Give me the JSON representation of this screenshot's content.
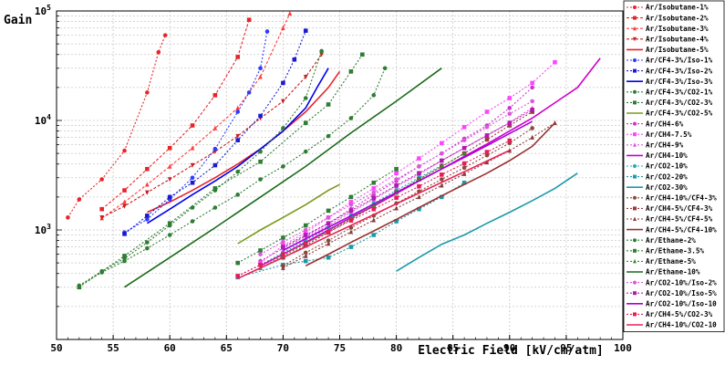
{
  "chart_data": {
    "type": "line",
    "title": "",
    "xlabel": "Electric Field [kV/cm/atm]",
    "ylabel": "Gain",
    "xlim": [
      50,
      100
    ],
    "ylim": [
      100,
      100000
    ],
    "yscale": "log",
    "x_ticks": [
      50,
      55,
      60,
      65,
      70,
      75,
      80,
      85,
      90,
      95,
      100
    ],
    "y_ticks": [
      {
        "value": 1000,
        "base": "10",
        "exp": "3"
      },
      {
        "value": 10000,
        "base": "10",
        "exp": "4"
      },
      {
        "value": 100000,
        "base": "10",
        "exp": "5"
      }
    ],
    "grid": true,
    "legend_position": "right",
    "series": [
      {
        "name": "Ar/Isobutane-1%",
        "color": "#e8232a",
        "dash": "2,2",
        "marker": "circle",
        "x": [
          51,
          52,
          54,
          56,
          58,
          59,
          59.6
        ],
        "y": [
          1300,
          1900,
          2900,
          5300,
          18000,
          42000,
          60000
        ]
      },
      {
        "name": "Ar/Isobutane-2%",
        "color": "#e8232a",
        "dash": "3,2",
        "marker": "square",
        "x": [
          54,
          56,
          58,
          60,
          62,
          64,
          66,
          67
        ],
        "y": [
          1550,
          2300,
          3600,
          5600,
          9000,
          17000,
          38000,
          83000
        ]
      },
      {
        "name": "Ar/Isobutane-3%",
        "color": "#ff3b3b",
        "dash": "3,2",
        "marker": "triangle",
        "x": [
          54,
          56,
          58,
          60,
          62,
          64,
          66,
          68,
          70,
          70.6
        ],
        "y": [
          1280,
          1800,
          2600,
          3800,
          5600,
          8500,
          13000,
          25000,
          70000,
          95000
        ]
      },
      {
        "name": "Ar/Isobutane-4%",
        "color": "#c81e1e",
        "dash": "3,2",
        "marker": "triangle-down",
        "x": [
          54,
          56,
          58,
          60,
          62,
          64,
          66,
          68,
          70,
          72,
          73.4
        ],
        "y": [
          1300,
          1650,
          2200,
          2900,
          3900,
          5200,
          7200,
          10500,
          15000,
          25000,
          40000
        ]
      },
      {
        "name": "Ar/Isobutane-5%",
        "color": "#e8232a",
        "dash": "",
        "marker": "none",
        "x": [
          58,
          60,
          62,
          64,
          66,
          68,
          70,
          72,
          74,
          75
        ],
        "y": [
          1450,
          1800,
          2300,
          3000,
          4000,
          5500,
          8000,
          12000,
          20000,
          28000
        ]
      },
      {
        "name": "Ar/CF4-3%/Iso-1%",
        "color": "#2a3cff",
        "dash": "2,2",
        "marker": "circle",
        "x": [
          56,
          58,
          60,
          62,
          64,
          66,
          67,
          68,
          68.6
        ],
        "y": [
          950,
          1250,
          1900,
          3000,
          5500,
          12000,
          18000,
          30000,
          65000
        ]
      },
      {
        "name": "Ar/CF4-3%/Iso-2%",
        "color": "#1a1ad0",
        "dash": "2,2",
        "marker": "square",
        "x": [
          56,
          58,
          60,
          62,
          64,
          66,
          68,
          70,
          71,
          72
        ],
        "y": [
          920,
          1350,
          2000,
          2700,
          3900,
          6600,
          11000,
          22000,
          36000,
          66000
        ]
      },
      {
        "name": "Ar/CF4-3%/Iso-3%",
        "color": "#0000ee",
        "dash": "",
        "marker": "none",
        "x": [
          58,
          60,
          62,
          64,
          66,
          68,
          70,
          72,
          73,
          74
        ],
        "y": [
          1150,
          1550,
          2100,
          2800,
          3800,
          5500,
          8000,
          13000,
          20000,
          30000
        ]
      },
      {
        "name": "Ar/CF4-3%/CO2-1%",
        "color": "#2e7d32",
        "dash": "2,2",
        "marker": "circle",
        "x": [
          52,
          54,
          56,
          58,
          60,
          62,
          64,
          66,
          68,
          70,
          72,
          73.4
        ],
        "y": [
          310,
          420,
          550,
          770,
          1100,
          1600,
          2300,
          3400,
          5200,
          8500,
          16000,
          43000
        ]
      },
      {
        "name": "Ar/CF4-3%/CO2-3%",
        "color": "#2e7d32",
        "dash": "2,2",
        "marker": "square",
        "x": [
          52,
          56,
          60,
          64,
          68,
          72,
          74,
          76,
          77
        ],
        "y": [
          300,
          580,
          1150,
          2400,
          4200,
          9500,
          14000,
          28000,
          40000
        ]
      },
      {
        "name": "Ar/CF4-3%/CO2-5%",
        "color": "#7a9a1a",
        "dash": "",
        "marker": "none",
        "x": [
          66,
          68,
          70,
          72,
          74,
          75
        ],
        "y": [
          750,
          1000,
          1300,
          1700,
          2300,
          2600
        ]
      },
      {
        "name": "Ar/CH4-6%",
        "color": "#cc33cc",
        "dash": "2,2",
        "marker": "circle",
        "x": [
          68,
          70,
          72,
          74,
          76,
          78,
          80,
          82,
          84,
          86,
          88,
          90,
          92
        ],
        "y": [
          520,
          680,
          880,
          1150,
          1550,
          2100,
          2800,
          3800,
          5000,
          6800,
          9000,
          13000,
          20000
        ]
      },
      {
        "name": "Ar/CH4-7.5%",
        "color": "#ff44ff",
        "dash": "2,2",
        "marker": "square",
        "x": [
          68,
          70,
          72,
          74,
          76,
          78,
          80,
          82,
          84,
          86,
          88,
          90,
          92,
          94
        ],
        "y": [
          500,
          720,
          950,
          1300,
          1800,
          2400,
          3300,
          4500,
          6200,
          8700,
          12000,
          16000,
          22000,
          34000
        ]
      },
      {
        "name": "Ar/CH4-9%",
        "color": "#dd55dd",
        "dash": "2,2",
        "marker": "triangle",
        "x": [
          70,
          72,
          74,
          76,
          78,
          80,
          82,
          84,
          86,
          88,
          90,
          92
        ],
        "y": [
          650,
          850,
          1100,
          1450,
          1900,
          2500,
          3200,
          4300,
          5600,
          7300,
          9600,
          13000
        ]
      },
      {
        "name": "Ar/CH4-10%",
        "color": "#cc00cc",
        "dash": "",
        "marker": "none",
        "x": [
          68,
          70,
          72,
          74,
          76,
          78,
          80,
          82,
          84,
          86,
          88,
          90,
          92,
          94,
          96,
          98
        ],
        "y": [
          470,
          600,
          770,
          1000,
          1300,
          1650,
          2150,
          2800,
          3600,
          4700,
          6100,
          8000,
          10500,
          14500,
          20000,
          37000
        ]
      },
      {
        "name": "Ar/CO2-10%",
        "color": "#2aa6b8",
        "dash": "2,2",
        "marker": "circle",
        "x": [
          66,
          68,
          70,
          72,
          74,
          76,
          78,
          80,
          82,
          84
        ],
        "y": [
          380,
          480,
          620,
          800,
          1050,
          1350,
          1750,
          2300,
          3000,
          3900
        ]
      },
      {
        "name": "Ar/CO2-20%",
        "color": "#1a9aa8",
        "dash": "2,2",
        "marker": "square",
        "x": [
          66,
          70,
          72,
          74,
          76,
          78,
          80,
          82,
          84,
          86
        ],
        "y": [
          370,
          480,
          520,
          560,
          700,
          900,
          1200,
          1550,
          2000,
          2700
        ]
      },
      {
        "name": "Ar/CO2-30%",
        "color": "#1a9aa8",
        "dash": "",
        "marker": "none",
        "x": [
          80,
          82,
          84,
          86,
          88,
          90,
          92,
          94,
          96
        ],
        "y": [
          420,
          560,
          740,
          900,
          1150,
          1450,
          1850,
          2400,
          3300
        ]
      },
      {
        "name": "Ar/CH4-10%/CF4-3%",
        "color": "#8a4a3a",
        "dash": "2,2",
        "marker": "circle",
        "x": [
          70,
          72,
          74,
          76,
          78,
          80,
          82,
          84,
          86,
          88,
          90,
          92
        ],
        "y": [
          470,
          620,
          800,
          1050,
          1350,
          1750,
          2250,
          2900,
          3700,
          4800,
          6200,
          8500
        ]
      },
      {
        "name": "Ar/CH4-5%/CF4-3%",
        "color": "#9a3a3a",
        "dash": "2,2",
        "marker": "square",
        "x": [
          70,
          72,
          74,
          76,
          78,
          80,
          82,
          84,
          86,
          88,
          90,
          92
        ],
        "y": [
          560,
          720,
          950,
          1250,
          1650,
          2200,
          2900,
          3800,
          5000,
          6700,
          9000,
          12000
        ]
      },
      {
        "name": "Ar/CH4-5%/CF4-5%",
        "color": "#8a3a3a",
        "dash": "2,2",
        "marker": "triangle",
        "x": [
          70,
          72,
          74,
          76,
          78,
          80,
          82,
          84,
          86,
          88,
          90,
          92,
          94
        ],
        "y": [
          450,
          580,
          750,
          960,
          1230,
          1580,
          2000,
          2550,
          3250,
          4150,
          5300,
          7000,
          9500
        ]
      },
      {
        "name": "Ar/CH4-5%/CF4-10%",
        "color": "#9a3030",
        "dash": "",
        "marker": "none",
        "x": [
          72,
          74,
          76,
          78,
          80,
          82,
          84,
          86,
          88,
          90,
          92,
          94
        ],
        "y": [
          470,
          600,
          770,
          980,
          1250,
          1600,
          2050,
          2600,
          3300,
          4300,
          5800,
          9500
        ]
      },
      {
        "name": "Ar/Ethane-2%",
        "color": "#2e7d32",
        "dash": "2,2",
        "marker": "circle",
        "x": [
          52,
          54,
          56,
          58,
          60,
          62,
          64,
          66,
          68,
          70,
          72,
          74,
          76,
          78,
          79
        ],
        "y": [
          310,
          410,
          520,
          680,
          900,
          1200,
          1600,
          2100,
          2900,
          3800,
          5200,
          7200,
          10500,
          17000,
          30000
        ]
      },
      {
        "name": "Ar/Ethane-3.5%",
        "color": "#2e7d32",
        "dash": "2,2",
        "marker": "square",
        "x": [
          66,
          68,
          70,
          72,
          74,
          76,
          78,
          80
        ],
        "y": [
          500,
          650,
          850,
          1100,
          1500,
          2000,
          2700,
          3600
        ]
      },
      {
        "name": "Ar/Ethane-5%",
        "color": "#3a8a2a",
        "dash": "2,2",
        "marker": "triangle",
        "x": [
          68,
          70,
          72,
          74,
          76,
          78,
          80,
          82,
          84,
          86
        ],
        "y": [
          450,
          580,
          750,
          980,
          1280,
          1680,
          2200,
          2900,
          3800,
          5000
        ]
      },
      {
        "name": "Ar/Ethane-10%",
        "color": "#1a6a1a",
        "dash": "",
        "marker": "none",
        "x": [
          56,
          60,
          64,
          68,
          72,
          76,
          80,
          84
        ],
        "y": [
          300,
          560,
          1050,
          2000,
          3800,
          7700,
          15000,
          30000
        ]
      },
      {
        "name": "Ar/CO2-10%/Iso-2%",
        "color": "#dd55dd",
        "dash": "2,2",
        "marker": "circle",
        "x": [
          68,
          70,
          72,
          74,
          76,
          78,
          80,
          82,
          84,
          86,
          88,
          90,
          92
        ],
        "y": [
          600,
          780,
          1000,
          1300,
          1700,
          2200,
          2900,
          3800,
          5000,
          6600,
          8700,
          11500,
          15000
        ]
      },
      {
        "name": "Ar/CO2-10%/Iso-5%",
        "color": "#b01ab0",
        "dash": "2,2",
        "marker": "square",
        "x": [
          70,
          72,
          74,
          76,
          78,
          80,
          82,
          84,
          86,
          88,
          90,
          92
        ],
        "y": [
          700,
          900,
          1150,
          1500,
          1950,
          2550,
          3300,
          4300,
          5600,
          7300,
          9500,
          12500
        ]
      },
      {
        "name": "Ar/CO2-10%/Iso-10",
        "color": "#aa00dd",
        "dash": "",
        "marker": "none",
        "x": [
          70,
          72,
          74,
          76,
          78,
          80,
          82,
          84,
          86,
          88,
          90,
          92
        ],
        "y": [
          650,
          830,
          1060,
          1350,
          1720,
          2200,
          2800,
          3600,
          4600,
          5900,
          7600,
          9800
        ]
      },
      {
        "name": "Ar/CH4-5%/CO2-3%",
        "color": "#e81a5a",
        "dash": "2,2",
        "marker": "square",
        "x": [
          66,
          68,
          70,
          72,
          74,
          76,
          78,
          80,
          82,
          84,
          86,
          88,
          90
        ],
        "y": [
          380,
          480,
          600,
          760,
          960,
          1220,
          1550,
          1970,
          2500,
          3200,
          4050,
          5150,
          6550
        ]
      },
      {
        "name": "Ar/CH4-10%/CO2-10",
        "color": "#e8235a",
        "dash": "",
        "marker": "none",
        "x": [
          66,
          68,
          70,
          72,
          74,
          76,
          78,
          80,
          82,
          84,
          86,
          88,
          90
        ],
        "y": [
          360,
          450,
          560,
          700,
          880,
          1100,
          1380,
          1730,
          2170,
          2720,
          3400,
          4260,
          5340
        ]
      }
    ]
  }
}
